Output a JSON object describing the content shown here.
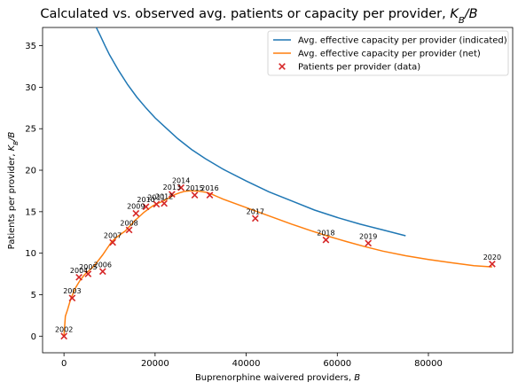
{
  "chart_data": {
    "type": "line",
    "title": "Calculated vs. observed avg. patients or capacity per provider, K_B/B",
    "xlabel": "Buprenorphine waivered providers, B",
    "ylabel": "Patients per provider, K_B/B",
    "xlim": [
      -4700,
      98500
    ],
    "ylim": [
      -2,
      37.2
    ],
    "xticks": [
      0,
      20000,
      40000,
      60000,
      80000
    ],
    "xtick_labels": [
      "0",
      "20000",
      "40000",
      "60000",
      "80000"
    ],
    "yticks": [
      0,
      5,
      10,
      15,
      20,
      25,
      30,
      35
    ],
    "ytick_labels": [
      "0",
      "5",
      "10",
      "15",
      "20",
      "25",
      "30",
      "35"
    ],
    "legend_position": "upper right",
    "grid": false,
    "series": [
      {
        "name": "Avg. effective capacity per provider (indicated)",
        "kind": "line",
        "color": "#1f77b4",
        "x": [
          5000,
          6000,
          7000,
          8000,
          9000,
          10000,
          12000,
          14000,
          16000,
          18000,
          20000,
          22000,
          25000,
          28000,
          31000,
          35000,
          40000,
          45000,
          50000,
          55000,
          60000,
          65000,
          70000,
          75000
        ],
        "y": [
          40.0,
          38.6,
          37.3,
          36.2,
          35.0,
          33.9,
          32.0,
          30.3,
          28.8,
          27.5,
          26.3,
          25.3,
          23.8,
          22.5,
          21.4,
          20.1,
          18.7,
          17.4,
          16.3,
          15.2,
          14.3,
          13.5,
          12.8,
          12.1
        ]
      },
      {
        "name": "Avg. effective capacity per provider (net)",
        "kind": "line",
        "color": "#ff7f0e",
        "x": [
          0,
          300,
          800,
          1500,
          2500,
          3500,
          4500,
          5500,
          6500,
          7500,
          8500,
          9500,
          10500,
          11500,
          12500,
          13500,
          14500,
          15500,
          16500,
          17500,
          18500,
          19500,
          20500,
          21500,
          22500,
          23500,
          24500,
          25500,
          26500,
          27500,
          28500,
          29500,
          30500,
          31500,
          32500,
          33500,
          35000,
          38000,
          42000,
          46000,
          50000,
          54000,
          58000,
          62000,
          66000,
          70000,
          75000,
          80000,
          85000,
          90000,
          94000
        ],
        "y": [
          0,
          2.4,
          3.2,
          4.5,
          5.8,
          6.7,
          7.4,
          7.9,
          8.4,
          9.1,
          9.8,
          10.6,
          11.4,
          11.9,
          12.3,
          12.7,
          13.3,
          13.9,
          14.4,
          14.9,
          15.3,
          15.7,
          16.0,
          16.2,
          16.5,
          16.8,
          17.1,
          17.3,
          17.45,
          17.5,
          17.5,
          17.48,
          17.4,
          17.3,
          17.1,
          16.85,
          16.5,
          15.9,
          15.1,
          14.3,
          13.5,
          12.75,
          12.05,
          11.4,
          10.8,
          10.25,
          9.7,
          9.25,
          8.85,
          8.5,
          8.35
        ]
      },
      {
        "name": "Patients per provider (data)",
        "kind": "scatter",
        "color": "#d62728",
        "points": [
          {
            "label": "2002",
            "x": 0,
            "y": 0.0
          },
          {
            "label": "2003",
            "x": 1800,
            "y": 4.6
          },
          {
            "label": "2004",
            "x": 3300,
            "y": 7.1
          },
          {
            "label": "2005",
            "x": 5300,
            "y": 7.5
          },
          {
            "label": "2006",
            "x": 8500,
            "y": 7.8
          },
          {
            "label": "2007",
            "x": 10700,
            "y": 11.3
          },
          {
            "label": "2008",
            "x": 14300,
            "y": 12.8
          },
          {
            "label": "2009",
            "x": 15800,
            "y": 14.8
          },
          {
            "label": "2010",
            "x": 18000,
            "y": 15.6
          },
          {
            "label": "2011",
            "x": 20300,
            "y": 15.9
          },
          {
            "label": "2012",
            "x": 22000,
            "y": 16.0
          },
          {
            "label": "2013",
            "x": 23700,
            "y": 17.1
          },
          {
            "label": "2014",
            "x": 25700,
            "y": 17.9
          },
          {
            "label": "2015",
            "x": 28700,
            "y": 17.0
          },
          {
            "label": "2016",
            "x": 32000,
            "y": 17.0
          },
          {
            "label": "2017",
            "x": 42000,
            "y": 14.2
          },
          {
            "label": "2018",
            "x": 57500,
            "y": 11.6
          },
          {
            "label": "2019",
            "x": 66800,
            "y": 11.2
          },
          {
            "label": "2020",
            "x": 94000,
            "y": 8.7
          }
        ]
      }
    ]
  }
}
